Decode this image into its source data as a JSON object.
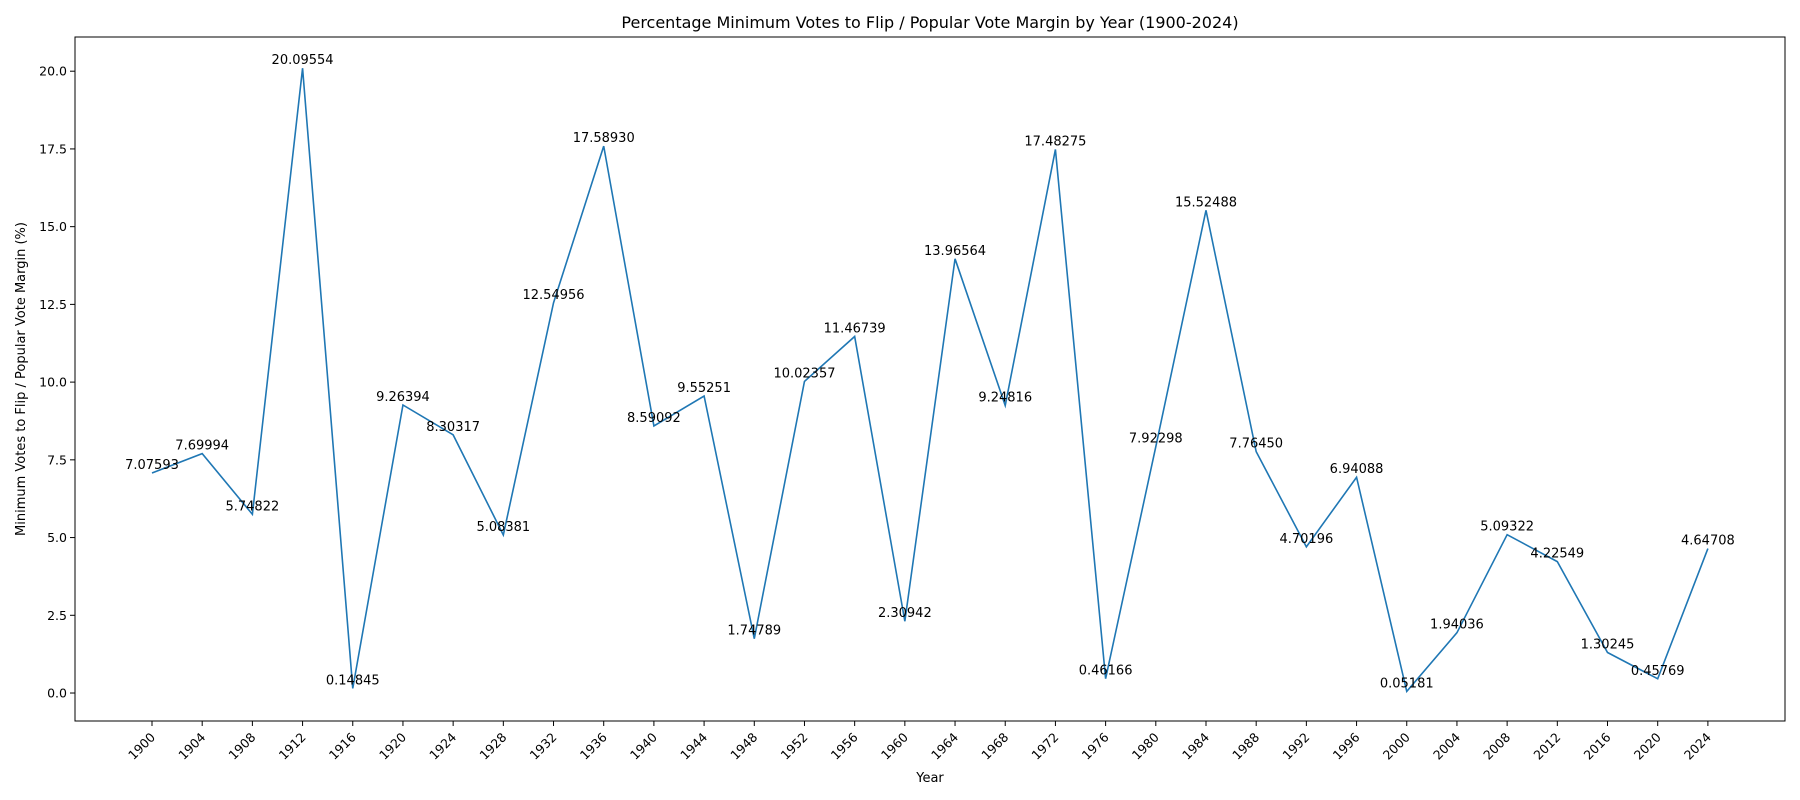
{
  "chart_data": {
    "type": "line",
    "title": "Percentage Minimum Votes to Flip / Popular Vote Margin by Year (1900-2024)",
    "xlabel": "Year",
    "ylabel": "Minimum Votes to Flip / Popular Vote Margin (%)",
    "ylim": [
      -0.9,
      21.1
    ],
    "yticks": [
      "0.0",
      "2.5",
      "5.0",
      "7.5",
      "10.0",
      "12.5",
      "15.0",
      "17.5",
      "20.0"
    ],
    "grid": false,
    "line_color": "#1f77b4",
    "categories": [
      "1900",
      "1904",
      "1908",
      "1912",
      "1916",
      "1920",
      "1924",
      "1928",
      "1932",
      "1936",
      "1940",
      "1944",
      "1948",
      "1952",
      "1956",
      "1960",
      "1964",
      "1968",
      "1972",
      "1976",
      "1980",
      "1984",
      "1988",
      "1992",
      "1996",
      "2000",
      "2004",
      "2008",
      "2012",
      "2016",
      "2020",
      "2024"
    ],
    "values": [
      7.07593,
      7.69994,
      5.74822,
      20.09554,
      0.14845,
      9.26394,
      8.30317,
      5.08381,
      12.54956,
      17.5893,
      8.59092,
      9.55251,
      1.74789,
      10.02357,
      11.46739,
      2.30942,
      13.96564,
      9.24816,
      17.48275,
      0.46166,
      7.92298,
      15.52488,
      7.7645,
      4.70196,
      6.94088,
      0.05181,
      1.94036,
      5.09322,
      4.22549,
      1.30245,
      0.45769,
      4.64708
    ],
    "labels": [
      "7.07593",
      "7.69994",
      "5.74822",
      "20.09554",
      "0.14845",
      "9.26394",
      "8.30317",
      "5.08381",
      "12.54956",
      "17.58930",
      "8.59092",
      "9.55251",
      "1.74789",
      "10.02357",
      "11.46739",
      "2.30942",
      "13.96564",
      "9.24816",
      "17.48275",
      "0.46166",
      "7.92298",
      "15.52488",
      "7.76450",
      "4.70196",
      "6.94088",
      "0.05181",
      "1.94036",
      "5.09322",
      "4.22549",
      "1.30245",
      "0.45769",
      "4.64708"
    ]
  }
}
